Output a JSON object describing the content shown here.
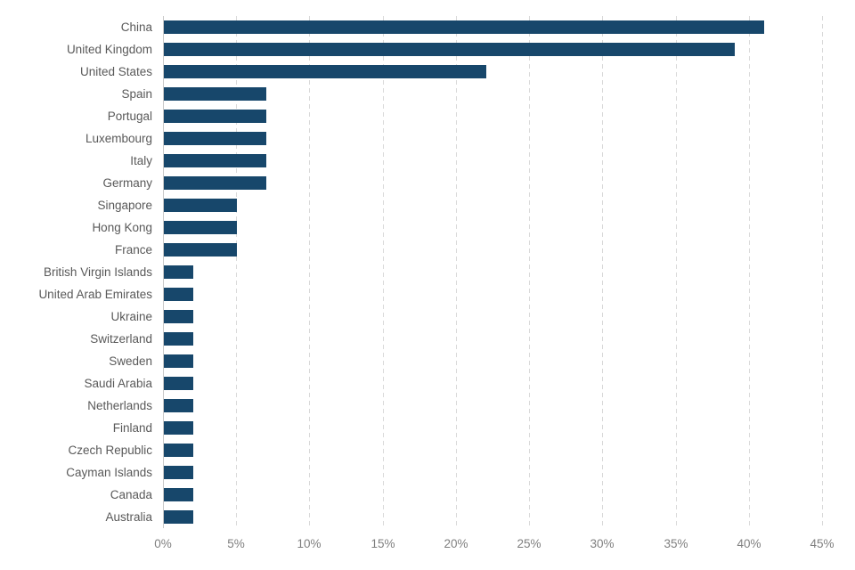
{
  "chart_data": {
    "type": "bar",
    "orientation": "horizontal",
    "title": "",
    "xlabel": "",
    "ylabel": "",
    "categories": [
      "China",
      "United Kingdom",
      "United States",
      "Spain",
      "Portugal",
      "Luxembourg",
      "Italy",
      "Germany",
      "Singapore",
      "Hong Kong",
      "France",
      "British Virgin Islands",
      "United Arab Emirates",
      "Ukraine",
      "Switzerland",
      "Sweden",
      "Saudi Arabia",
      "Netherlands",
      "Finland",
      "Czech Republic",
      "Cayman Islands",
      "Canada",
      "Australia"
    ],
    "values": [
      41,
      39,
      22,
      7,
      7,
      7,
      7,
      7,
      5,
      5,
      5,
      2,
      2,
      2,
      2,
      2,
      2,
      2,
      2,
      2,
      2,
      2,
      2
    ],
    "value_unit": "%",
    "xlim": [
      0,
      45
    ],
    "xticks": [
      0,
      5,
      10,
      15,
      20,
      25,
      30,
      35,
      40,
      45
    ],
    "xtick_labels": [
      "0%",
      "5%",
      "10%",
      "15%",
      "20%",
      "25%",
      "30%",
      "35%",
      "40%",
      "45%"
    ],
    "grid": "vertical-dashed",
    "legend": "none",
    "colors": {
      "bar": "#17476B",
      "gridline": "#d9d9d9",
      "axis_line": "#c9c9c9",
      "category_label": "#595959",
      "tick_label": "#7f7f7f",
      "background": "#ffffff"
    }
  }
}
